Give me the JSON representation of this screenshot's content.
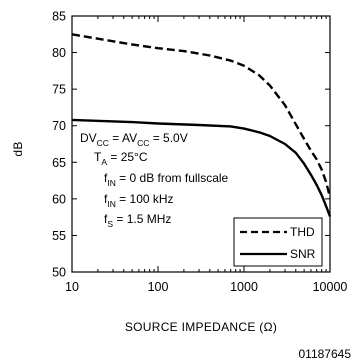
{
  "chart_data": {
    "type": "line",
    "xlabel": "SOURCE IMPEDANCE (Ω)",
    "ylabel": "dB",
    "x_scale": "log",
    "xlim": [
      10,
      10000
    ],
    "ylim": [
      50,
      85
    ],
    "x_ticks": [
      "10",
      "100",
      "1000",
      "10000"
    ],
    "y_ticks": [
      "50",
      "55",
      "60",
      "65",
      "70",
      "75",
      "80",
      "85"
    ],
    "grid": false,
    "legend_position": "bottom-right",
    "series": [
      {
        "name": "THD",
        "style": "dashed",
        "points": [
          [
            10,
            82.5
          ],
          [
            20,
            81.9
          ],
          [
            50,
            81.1
          ],
          [
            100,
            80.6
          ],
          [
            200,
            80.2
          ],
          [
            400,
            79.6
          ],
          [
            700,
            78.9
          ],
          [
            1000,
            78.2
          ],
          [
            1500,
            76.9
          ],
          [
            2000,
            75.5
          ],
          [
            3000,
            72.8
          ],
          [
            4000,
            70.2
          ],
          [
            5000,
            68.2
          ],
          [
            6000,
            66.6
          ],
          [
            7000,
            65.4
          ],
          [
            8000,
            64.0
          ],
          [
            9000,
            62.3
          ],
          [
            10000,
            60.2
          ]
        ]
      },
      {
        "name": "SNR",
        "style": "solid",
        "points": [
          [
            10,
            70.8
          ],
          [
            50,
            70.5
          ],
          [
            100,
            70.3
          ],
          [
            300,
            70.1
          ],
          [
            700,
            69.9
          ],
          [
            1000,
            69.6
          ],
          [
            1500,
            69.1
          ],
          [
            2000,
            68.6
          ],
          [
            3000,
            67.5
          ],
          [
            4000,
            66.3
          ],
          [
            5000,
            64.8
          ],
          [
            6000,
            63.3
          ],
          [
            7000,
            61.9
          ],
          [
            8000,
            60.5
          ],
          [
            9000,
            59.0
          ],
          [
            10000,
            57.6
          ]
        ]
      }
    ],
    "conditions": {
      "line1": {
        "a": "DV",
        "a_sub": "CC",
        "b": " = AV",
        "b_sub": "CC",
        "c": " = 5.0V"
      },
      "line2": {
        "a": "T",
        "a_sub": "A",
        "c": " = 25°C"
      },
      "line3": {
        "a": "f",
        "a_sub": "IN",
        "c": " = 0 dB from fullscale"
      },
      "line4": {
        "a": "f",
        "a_sub": "IN",
        "c": " = 100 kHz"
      },
      "line5": {
        "a": "f",
        "a_sub": "S",
        "c": " = 1.5 MHz"
      }
    }
  },
  "figure_id": "01187645"
}
